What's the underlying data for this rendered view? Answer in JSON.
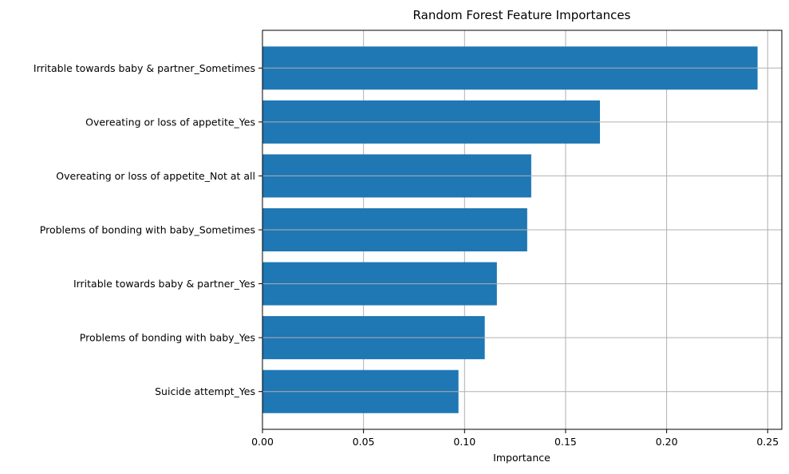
{
  "chart_data": {
    "type": "bar",
    "orientation": "horizontal",
    "title": "Random Forest Feature Importances",
    "xlabel": "Importance",
    "ylabel": "",
    "categories": [
      "Irritable towards baby & partner_Sometimes",
      "Overeating or loss of appetite_Yes",
      "Overeating or loss of appetite_Not at all",
      "Problems of bonding with baby_Sometimes",
      "Irritable towards baby & partner_Yes",
      "Problems of bonding with baby_Yes",
      "Suicide attempt_Yes"
    ],
    "values": [
      0.245,
      0.167,
      0.133,
      0.131,
      0.116,
      0.11,
      0.097
    ],
    "xlim": [
      0,
      0.257
    ],
    "xticks": [
      0.0,
      0.05,
      0.1,
      0.15,
      0.2,
      0.25
    ],
    "xtick_labels": [
      "0.00",
      "0.05",
      "0.10",
      "0.15",
      "0.20",
      "0.25"
    ],
    "grid": true,
    "legend": "none",
    "bar_color": "#1f77b4",
    "grid_color": "#b0b0b0"
  }
}
